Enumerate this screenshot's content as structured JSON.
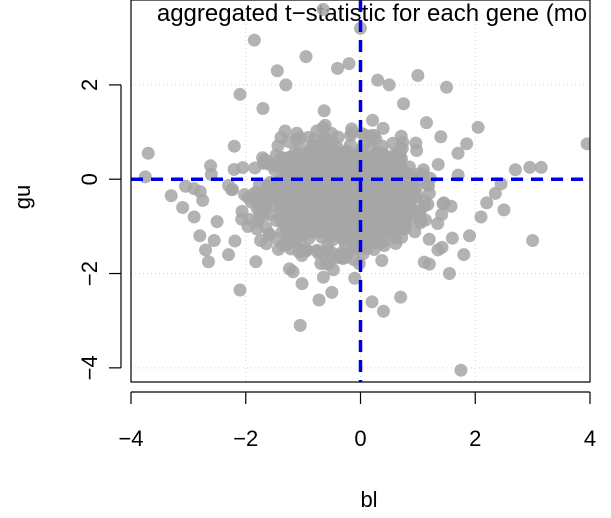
{
  "chart_data": {
    "type": "scatter",
    "title": "aggregated t−statistic for each gene (mo",
    "xlabel": "bl",
    "ylabel": "gu",
    "xlim": [
      -4.0,
      4.0
    ],
    "ylim": [
      -4.3,
      3.8
    ],
    "xticks": [
      "−4",
      "−2",
      "0",
      "2",
      "4"
    ],
    "yticks": [
      "−4",
      "−2",
      "0",
      "2"
    ],
    "grid": true,
    "point_color": "#a6a6a6",
    "reference_line_color": "#0000e6",
    "reference_lines": {
      "x": 0,
      "y": 0
    },
    "cloud": {
      "center_x": -0.35,
      "center_y": -0.35,
      "spread_x": 0.65,
      "spread_y": 0.55,
      "count": 1400
    },
    "points": [
      [
        -0.65,
        3.6
      ],
      [
        0.0,
        3.2
      ],
      [
        -1.85,
        2.95
      ],
      [
        -0.2,
        2.45
      ],
      [
        0.5,
        2.0
      ],
      [
        -0.95,
        2.6
      ],
      [
        -1.45,
        2.3
      ],
      [
        1.0,
        2.2
      ],
      [
        1.5,
        1.95
      ],
      [
        -2.1,
        1.8
      ],
      [
        -3.7,
        0.55
      ],
      [
        -3.75,
        0.05
      ],
      [
        -3.3,
        -0.35
      ],
      [
        -3.1,
        -0.6
      ],
      [
        -2.9,
        -0.8
      ],
      [
        -2.8,
        -1.2
      ],
      [
        -2.7,
        -1.5
      ],
      [
        -2.65,
        -1.75
      ],
      [
        -2.3,
        -1.6
      ],
      [
        -2.1,
        -2.35
      ],
      [
        -1.05,
        -3.1
      ],
      [
        -0.5,
        -2.4
      ],
      [
        -0.1,
        -2.1
      ],
      [
        0.2,
        -2.6
      ],
      [
        0.4,
        -2.8
      ],
      [
        0.7,
        -2.5
      ],
      [
        1.75,
        -4.05
      ],
      [
        1.2,
        -1.8
      ],
      [
        1.35,
        -1.5
      ],
      [
        1.55,
        -2.0
      ],
      [
        1.8,
        -1.6
      ],
      [
        1.9,
        -1.2
      ],
      [
        2.1,
        -0.8
      ],
      [
        2.2,
        -0.5
      ],
      [
        2.35,
        -0.3
      ],
      [
        2.45,
        -0.1
      ],
      [
        2.7,
        0.2
      ],
      [
        2.95,
        0.25
      ],
      [
        3.15,
        0.25
      ],
      [
        3.95,
        0.75
      ],
      [
        3.0,
        -1.3
      ],
      [
        2.05,
        1.1
      ],
      [
        1.85,
        0.75
      ],
      [
        1.7,
        0.55
      ],
      [
        -2.9,
        -0.2
      ],
      [
        -2.6,
        0.1
      ],
      [
        -2.5,
        -0.9
      ],
      [
        -2.2,
        0.7
      ],
      [
        -1.7,
        1.5
      ],
      [
        -1.3,
        2.0
      ],
      [
        -0.4,
        2.35
      ],
      [
        0.3,
        2.1
      ],
      [
        0.75,
        1.6
      ],
      [
        1.15,
        1.2
      ],
      [
        1.4,
        0.9
      ],
      [
        -3.05,
        -0.15
      ],
      [
        -2.75,
        -0.45
      ],
      [
        -2.55,
        -1.3
      ],
      [
        2.5,
        -0.65
      ],
      [
        1.6,
        -1.25
      ]
    ]
  }
}
